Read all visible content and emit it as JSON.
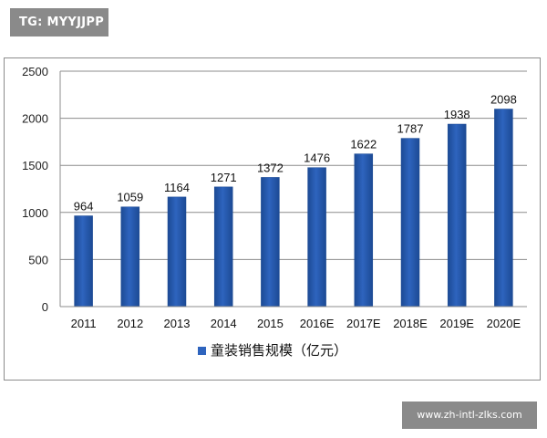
{
  "watermark": {
    "top_left": "TG: MYYJJPP",
    "bottom_right": "www.zh-intl-zlks.com"
  },
  "chart_data": {
    "type": "bar",
    "categories": [
      "2011",
      "2012",
      "2013",
      "2014",
      "2015",
      "2016E",
      "2017E",
      "2018E",
      "2019E",
      "2020E"
    ],
    "series": [
      {
        "name": "童装销售规模（亿元）",
        "values": [
          964,
          1059,
          1164,
          1271,
          1372,
          1476,
          1622,
          1787,
          1938,
          2098
        ]
      }
    ],
    "data_labels": [
      "964",
      "1059",
      "1164",
      "1271",
      "1372",
      "1476",
      "1622",
      "1787",
      "1938",
      "2098"
    ],
    "y_ticks": [
      "0",
      "500",
      "1000",
      "1500",
      "2000",
      "2500"
    ],
    "ylim": [
      0,
      2500
    ],
    "title": "",
    "xlabel": "",
    "ylabel": "",
    "grid": true,
    "legend_position": "bottom",
    "colors": {
      "bar": "#2e64be",
      "bar_dark": "#1c4a94",
      "grid": "#8c8c8c",
      "axis": "#8c8c8c"
    }
  }
}
